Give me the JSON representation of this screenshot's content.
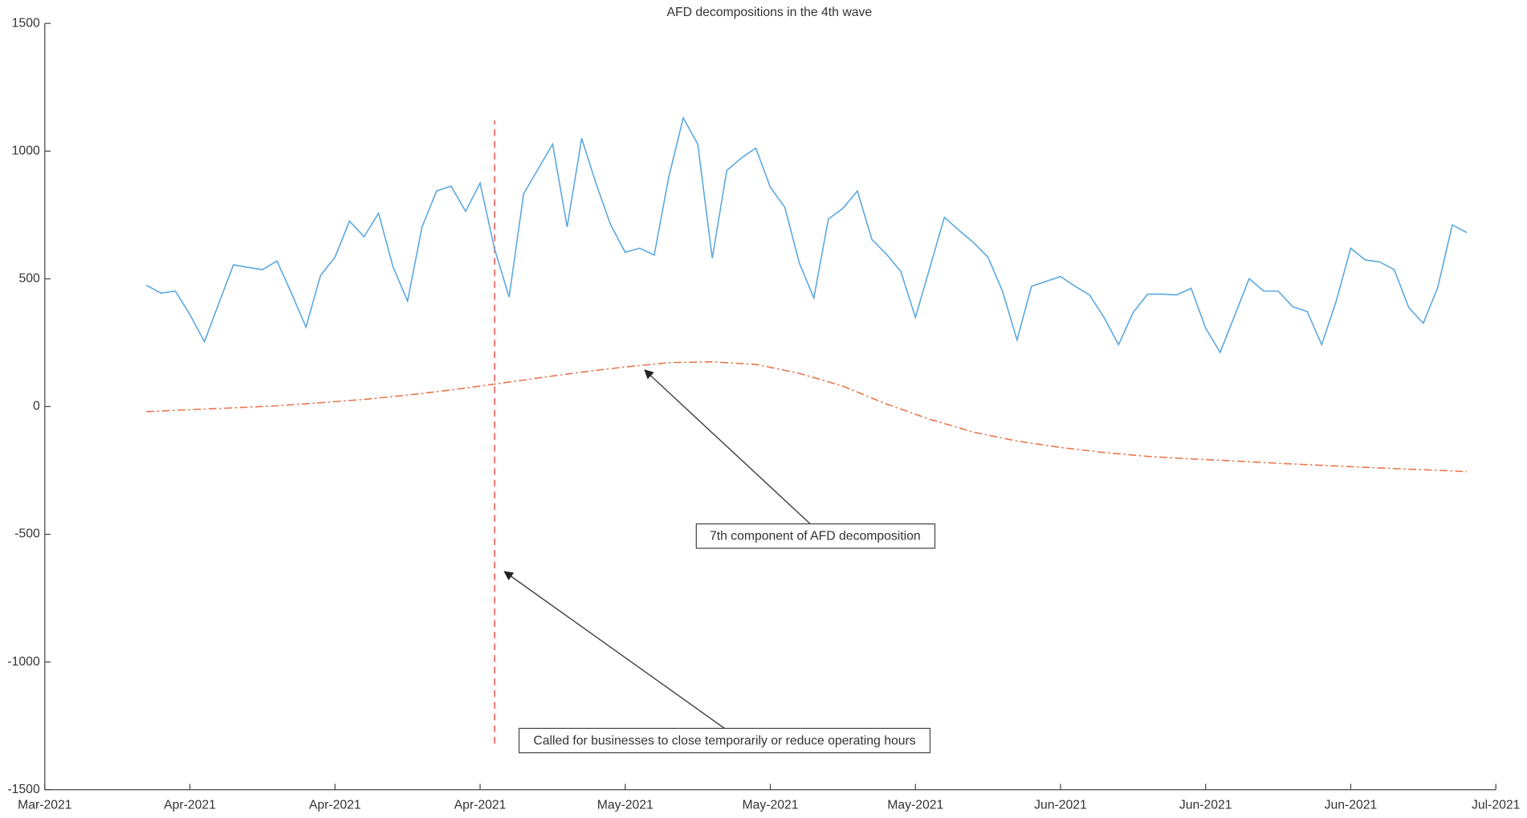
{
  "chart_data": {
    "type": "line",
    "title": "AFD decompositions in the 4th wave",
    "xlim": [
      0,
      100
    ],
    "xticks": [
      {
        "value": 0,
        "label": "Mar-2021"
      },
      {
        "value": 10,
        "label": "Apr-2021"
      },
      {
        "value": 20,
        "label": "Apr-2021"
      },
      {
        "value": 30,
        "label": "Apr-2021"
      },
      {
        "value": 40,
        "label": "May-2021"
      },
      {
        "value": 50,
        "label": "May-2021"
      },
      {
        "value": 60,
        "label": "May-2021"
      },
      {
        "value": 70,
        "label": "Jun-2021"
      },
      {
        "value": 80,
        "label": "Jun-2021"
      },
      {
        "value": 90,
        "label": "Jun-2021"
      },
      {
        "value": 100,
        "label": "Jul-2021"
      }
    ],
    "ylim": [
      -1500,
      1500
    ],
    "yticks": [
      -1500,
      -1000,
      -500,
      0,
      500,
      1000,
      1500
    ],
    "series": [
      {
        "color": "#5aa7e0",
        "dash": "solid",
        "x": [
          7,
          8,
          9,
          10,
          11,
          12,
          13,
          14,
          15,
          16,
          17,
          18,
          19,
          20,
          21,
          22,
          23,
          24,
          25,
          26,
          27,
          28,
          29,
          30,
          31,
          32,
          33,
          34,
          35,
          36,
          37,
          38,
          39,
          40,
          41,
          42,
          43,
          44,
          45,
          46,
          47,
          48,
          49,
          50,
          51,
          52,
          53,
          54,
          55,
          56,
          57,
          58,
          59,
          60,
          61,
          62,
          63,
          64,
          65,
          66,
          67,
          68,
          69,
          70,
          71,
          72,
          73,
          74,
          75,
          76,
          77,
          78,
          79,
          80,
          81,
          82,
          83,
          84,
          85,
          86,
          87,
          88,
          89,
          90,
          91,
          92,
          93,
          94,
          95,
          96,
          97,
          98
        ],
        "values": [
          475,
          444,
          452,
          360,
          254,
          405,
          555,
          545,
          536,
          570,
          444,
          311,
          513,
          585,
          726,
          665,
          757,
          547,
          413,
          703,
          844,
          863,
          764,
          875,
          616,
          429,
          833,
          930,
          1027,
          703,
          1050,
          871,
          711,
          604,
          620,
          593,
          898,
          1130,
          1027,
          581,
          924,
          973,
          1012,
          859,
          780,
          562,
          425,
          734,
          776,
          844,
          654,
          597,
          528,
          349,
          545,
          741,
          690,
          642,
          585,
          452,
          261,
          471,
          490,
          509,
          471,
          437,
          349,
          242,
          368,
          440,
          440,
          437,
          463,
          307,
          212,
          356,
          501,
          452,
          452,
          391,
          372,
          242,
          413,
          620,
          574,
          566,
          536,
          387,
          326,
          467,
          711,
          681
        ]
      },
      {
        "color": "#e8754a",
        "dash": "dashdot",
        "x": [
          7,
          10,
          13,
          16,
          19,
          22,
          25,
          28,
          31,
          34,
          37,
          40,
          43,
          46,
          49,
          52,
          55,
          58,
          61,
          64,
          67,
          70,
          73,
          76,
          79,
          82,
          85,
          88,
          91,
          94,
          97,
          98
        ],
        "values": [
          -20,
          -12,
          -5,
          3,
          15,
          28,
          45,
          65,
          88,
          112,
          135,
          155,
          172,
          175,
          165,
          130,
          80,
          10,
          -50,
          -100,
          -135,
          -160,
          -180,
          -195,
          -205,
          -213,
          -222,
          -230,
          -238,
          -245,
          -252,
          -255
        ]
      }
    ],
    "reference_line": {
      "x": 31,
      "y": [
        -1320,
        1120
      ],
      "color": "#f07070"
    },
    "annotations": [
      {
        "text": "7th component of AFD decomposition"
      },
      {
        "text": "Called for businesses to close temporarily or reduce operating hours"
      }
    ]
  }
}
